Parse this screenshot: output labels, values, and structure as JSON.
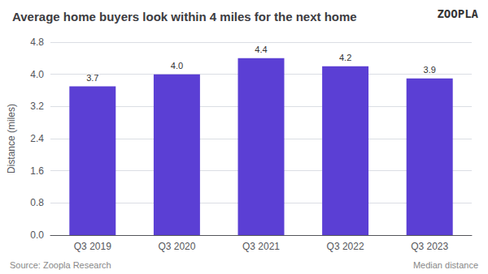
{
  "chart_data": {
    "type": "bar",
    "title": "Average home buyers look within 4 miles for the next home",
    "categories": [
      "Q3 2019",
      "Q3 2020",
      "Q3 2021",
      "Q3 2022",
      "Q3 2023"
    ],
    "values": [
      3.7,
      4.0,
      4.4,
      4.2,
      3.9
    ],
    "value_labels": [
      "3.7",
      "4.0",
      "4.4",
      "4.2",
      "3.9"
    ],
    "color": "#5b3fd4",
    "ylabel": "Distance (miles)",
    "ylim": [
      0.0,
      4.8
    ],
    "yticks": [
      {
        "value": 0.0,
        "label": "0.0"
      },
      0.8,
      1.6,
      2.4,
      3.2,
      {
        "value": 4.0,
        "label": "4.0"
      },
      4.8
    ],
    "grid": true,
    "data_labels": true,
    "annotations": [
      "ZOOPLA",
      "Source: Zoopla Research",
      "Median distance"
    ]
  }
}
